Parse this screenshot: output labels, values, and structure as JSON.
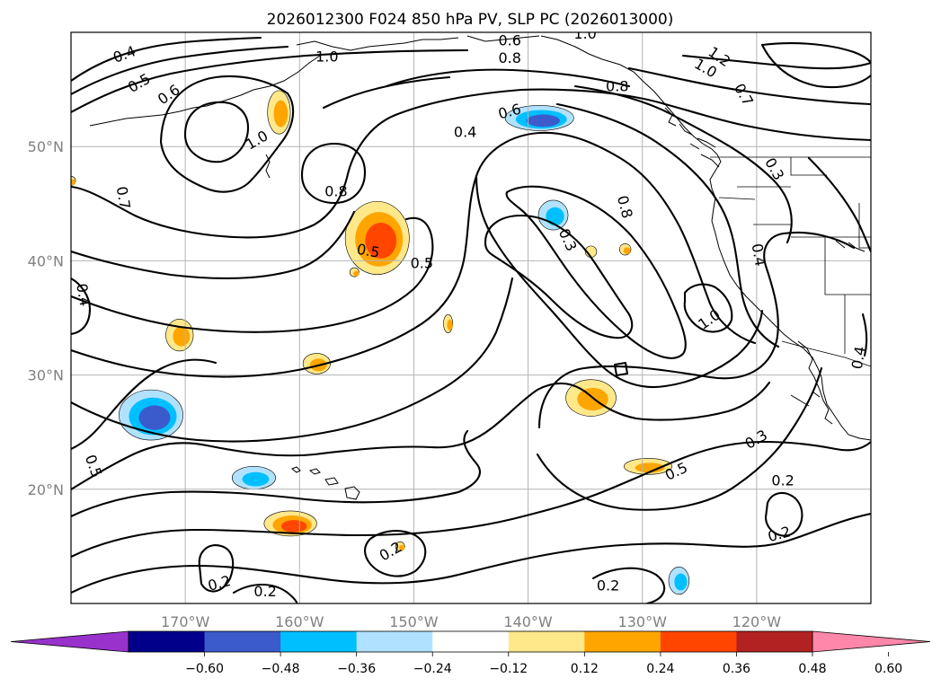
{
  "title": "2026012300 F024 850 hPa PV, SLP PC (2026013000)",
  "map": {
    "lon_range": [
      -180,
      -110
    ],
    "lat_range": [
      10,
      60
    ],
    "lat_ticks": [
      {
        "lat": 50,
        "label": "50°N"
      },
      {
        "lat": 40,
        "label": "40°N"
      },
      {
        "lat": 30,
        "label": "30°N"
      },
      {
        "lat": 20,
        "label": "20°N"
      }
    ],
    "lon_ticks": [
      {
        "lon": -170,
        "label": "170°W"
      },
      {
        "lon": -160,
        "label": "160°W"
      },
      {
        "lon": -150,
        "label": "150°W"
      },
      {
        "lon": -140,
        "label": "140°W"
      },
      {
        "lon": -130,
        "label": "130°W"
      },
      {
        "lon": -120,
        "label": "120°W"
      }
    ],
    "gridlines": true
  },
  "colorbar": {
    "colors": [
      "#9932cc",
      "#00008b",
      "#3b5bcc",
      "#00bfff",
      "#b0e2ff",
      "#ffffff",
      "#ffe88a",
      "#ffa500",
      "#ff4500",
      "#b22222",
      "#ff88aa"
    ],
    "ticks": [
      "−0.60",
      "−0.48",
      "−0.36",
      "−0.24",
      "−0.12",
      "0.12",
      "0.24",
      "0.36",
      "0.48",
      "0.60"
    ],
    "extend": "both"
  },
  "pv_features": [
    {
      "lon": -153.2,
      "lat": 42.0,
      "kind": "positive",
      "levels": [
        "#ffe88a",
        "#ffa500",
        "#ff4500"
      ],
      "rx": 2.8,
      "ry": 3.2
    },
    {
      "lon": -173.0,
      "lat": 26.5,
      "kind": "negative",
      "levels": [
        "#b0e2ff",
        "#00bfff",
        "#3b5bcc"
      ],
      "rx": 2.8,
      "ry": 2.2
    },
    {
      "lon": -139.0,
      "lat": 52.5,
      "kind": "negative",
      "levels": [
        "#b0e2ff",
        "#00bfff",
        "#3b5bcc"
      ],
      "rx": 3.0,
      "ry": 1.1
    },
    {
      "lon": -137.8,
      "lat": 44.0,
      "kind": "negative",
      "levels": [
        "#b0e2ff",
        "#00bfff"
      ],
      "rx": 1.3,
      "ry": 1.3
    },
    {
      "lon": -134.5,
      "lat": 28.0,
      "kind": "positive",
      "levels": [
        "#ffe88a",
        "#ffa500"
      ],
      "rx": 2.2,
      "ry": 1.6
    },
    {
      "lon": -160.8,
      "lat": 17.0,
      "kind": "positive",
      "levels": [
        "#ffe88a",
        "#ffa500",
        "#ff4500"
      ],
      "rx": 2.3,
      "ry": 1.1
    },
    {
      "lon": -170.5,
      "lat": 33.5,
      "kind": "positive",
      "levels": [
        "#ffe88a",
        "#ffa500"
      ],
      "rx": 1.2,
      "ry": 1.4
    },
    {
      "lon": -161.8,
      "lat": 53.0,
      "kind": "positive",
      "levels": [
        "#ffe88a",
        "#ffa500"
      ],
      "rx": 1.0,
      "ry": 1.9
    },
    {
      "lon": -158.5,
      "lat": 31.0,
      "kind": "positive",
      "levels": [
        "#ffe88a",
        "#ffa500"
      ],
      "rx": 1.2,
      "ry": 0.9
    },
    {
      "lon": -164.0,
      "lat": 21.0,
      "kind": "negative",
      "levels": [
        "#b0e2ff",
        "#00bfff"
      ],
      "rx": 1.9,
      "ry": 1.0
    },
    {
      "lon": -129.5,
      "lat": 22.0,
      "kind": "positive",
      "levels": [
        "#ffe88a",
        "#ffa500"
      ],
      "rx": 2.1,
      "ry": 0.7
    },
    {
      "lon": -126.8,
      "lat": 12.0,
      "kind": "negative",
      "levels": [
        "#b0e2ff",
        "#00bfff"
      ],
      "rx": 0.9,
      "ry": 1.2
    },
    {
      "lon": -147.0,
      "lat": 34.5,
      "kind": "positive",
      "levels": [
        "#ffe88a",
        "#ffa500"
      ],
      "rx": 0.4,
      "ry": 0.8
    },
    {
      "lon": -134.5,
      "lat": 40.8,
      "kind": "positive",
      "levels": [
        "#ffe88a"
      ],
      "rx": 0.5,
      "ry": 0.5
    },
    {
      "lon": -131.5,
      "lat": 41.0,
      "kind": "positive",
      "levels": [
        "#ffe88a",
        "#ffa500"
      ],
      "rx": 0.5,
      "ry": 0.5
    },
    {
      "lon": -155.2,
      "lat": 39.0,
      "kind": "positive",
      "levels": [
        "#ffe88a",
        "#ffa500"
      ],
      "rx": 0.4,
      "ry": 0.4
    },
    {
      "lon": -151.2,
      "lat": 15.0,
      "kind": "positive",
      "levels": [
        "#ffe88a",
        "#ffa500"
      ],
      "rx": 0.4,
      "ry": 0.4
    },
    {
      "lon": -180.0,
      "lat": 47.0,
      "kind": "positive",
      "levels": [
        "#ffe88a",
        "#ffa500"
      ],
      "rx": 0.4,
      "ry": 0.4
    }
  ],
  "contour_labels": [
    {
      "text": "0.4",
      "lon": -175.3,
      "lat": 58.0,
      "angle": -20
    },
    {
      "text": "0.5",
      "lon": -174.0,
      "lat": 55.5,
      "angle": -30
    },
    {
      "text": "0.6",
      "lon": -171.4,
      "lat": 54.5,
      "angle": -35
    },
    {
      "text": "1.0",
      "lon": -163.7,
      "lat": 50.5,
      "angle": -30
    },
    {
      "text": "0.7",
      "lon": -175.5,
      "lat": 45.5,
      "angle": 80
    },
    {
      "text": "0.8",
      "lon": -156.8,
      "lat": 46.0,
      "angle": 0
    },
    {
      "text": "0.5",
      "lon": -154.0,
      "lat": 40.8,
      "angle": 10
    },
    {
      "text": "0.5",
      "lon": -149.3,
      "lat": 39.7,
      "angle": 0
    },
    {
      "text": "0.4",
      "lon": -179.0,
      "lat": 37.0,
      "angle": 80
    },
    {
      "text": "1.0",
      "lon": -157.6,
      "lat": 57.8,
      "angle": 0
    },
    {
      "text": "0.6",
      "lon": -141.6,
      "lat": 59.2,
      "angle": 0
    },
    {
      "text": "0.8",
      "lon": -141.6,
      "lat": 57.7,
      "angle": 0
    },
    {
      "text": "1.0",
      "lon": -135.0,
      "lat": 59.8,
      "angle": 0
    },
    {
      "text": "0.6",
      "lon": -141.6,
      "lat": 53.0,
      "angle": -15
    },
    {
      "text": "0.4",
      "lon": -145.5,
      "lat": 51.2,
      "angle": 0
    },
    {
      "text": "0.8",
      "lon": -132.2,
      "lat": 55.2,
      "angle": 0
    },
    {
      "text": "1.2",
      "lon": -123.3,
      "lat": 57.8,
      "angle": 35
    },
    {
      "text": "1.0",
      "lon": -124.5,
      "lat": 56.8,
      "angle": 30
    },
    {
      "text": "0.7",
      "lon": -121.2,
      "lat": 54.5,
      "angle": 60
    },
    {
      "text": "0.3",
      "lon": -118.5,
      "lat": 48.0,
      "angle": 60
    },
    {
      "text": "0.8",
      "lon": -131.6,
      "lat": 44.7,
      "angle": 75
    },
    {
      "text": "0.3",
      "lon": -136.6,
      "lat": 41.8,
      "angle": 65
    },
    {
      "text": "0.4",
      "lon": -119.9,
      "lat": 40.5,
      "angle": 80
    },
    {
      "text": "1.0",
      "lon": -124.1,
      "lat": 34.8,
      "angle": -35
    },
    {
      "text": "0.5",
      "lon": -178.1,
      "lat": 22.0,
      "angle": 70
    },
    {
      "text": "0.3",
      "lon": -120.0,
      "lat": 24.3,
      "angle": -30
    },
    {
      "text": "0.5",
      "lon": -127.0,
      "lat": 21.5,
      "angle": -25
    },
    {
      "text": "0.2",
      "lon": -117.7,
      "lat": 20.7,
      "angle": 0
    },
    {
      "text": "0.2",
      "lon": -118.0,
      "lat": 16.0,
      "angle": -15
    },
    {
      "text": "0.2",
      "lon": -152.0,
      "lat": 14.5,
      "angle": -30
    },
    {
      "text": "0.2",
      "lon": -133.0,
      "lat": 11.5,
      "angle": 0
    },
    {
      "text": "0.2",
      "lon": -167.0,
      "lat": 11.7,
      "angle": -15
    },
    {
      "text": "0.2",
      "lon": -163.0,
      "lat": 11.0,
      "angle": 0
    },
    {
      "text": "0.4",
      "lon": -111.0,
      "lat": 31.5,
      "angle": -80
    }
  ]
}
